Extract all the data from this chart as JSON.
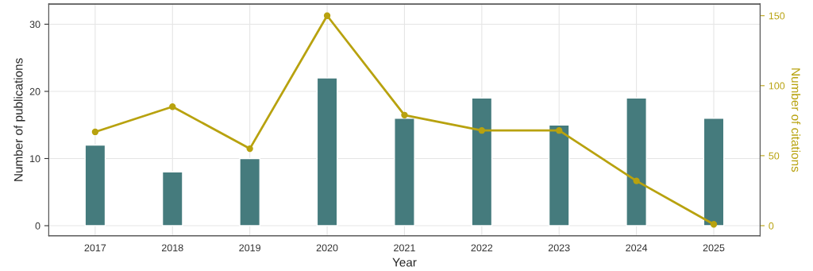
{
  "chart_data": {
    "type": "bar",
    "xlabel": "Year",
    "ylabel": "Number of publications",
    "y2label": "Number of citations",
    "categories": [
      "2017",
      "2018",
      "2019",
      "2020",
      "2021",
      "2022",
      "2023",
      "2024",
      "2025"
    ],
    "series": [
      {
        "color": "#457b7d",
        "values": [
          12,
          8,
          10,
          22,
          16,
          19,
          15,
          19,
          16
        ]
      },
      {
        "type": "line",
        "axis": "y2",
        "color": "#b8a20f",
        "marker": "circle",
        "values": [
          67,
          85,
          55,
          150,
          79,
          68,
          68,
          32,
          1
        ]
      }
    ],
    "ylim": [
      -1.5,
      33
    ],
    "yticks": [
      0,
      10,
      20,
      30
    ],
    "y2lim": [
      -7.2,
      158.3
    ],
    "y2ticks": [
      0,
      50,
      100,
      150
    ],
    "grid": true,
    "legend": false
  }
}
